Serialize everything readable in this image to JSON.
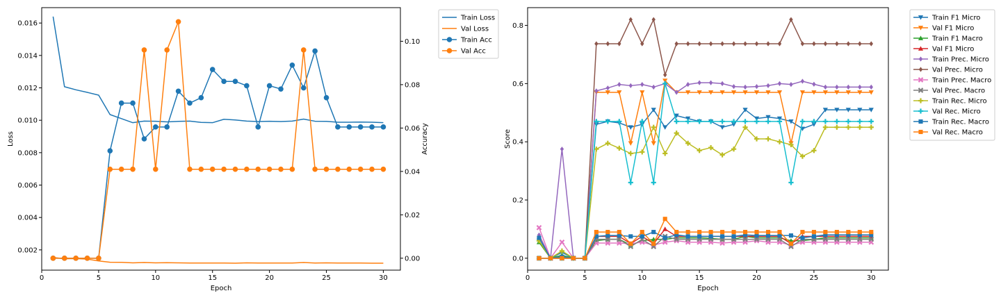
{
  "chart_data": [
    {
      "type": "line",
      "xlabel": "Epoch",
      "ylabel": "Loss",
      "y2label": "Accuracy",
      "xlim": [
        0,
        31.5
      ],
      "ylim": [
        0.00075,
        0.01695
      ],
      "y2lim": [
        -0.0055,
        0.1155
      ],
      "xticks": [
        0,
        5,
        10,
        15,
        20,
        25,
        30
      ],
      "yticks": [
        0.002,
        0.004,
        0.006,
        0.008,
        0.01,
        0.012,
        0.014,
        0.016
      ],
      "ytick_labels": [
        "0.002",
        "0.004",
        "0.006",
        "0.008",
        "0.010",
        "0.012",
        "0.014",
        "0.016"
      ],
      "y2ticks": [
        0.0,
        0.02,
        0.04,
        0.06,
        0.08,
        0.1
      ],
      "y2tick_labels": [
        "0.00",
        "0.02",
        "0.04",
        "0.06",
        "0.08",
        "0.10"
      ],
      "legend_position": "upper-right-outside",
      "x": [
        1,
        2,
        3,
        4,
        5,
        6,
        7,
        8,
        9,
        10,
        11,
        12,
        13,
        14,
        15,
        16,
        17,
        18,
        19,
        20,
        21,
        22,
        23,
        24,
        25,
        26,
        27,
        28,
        29,
        30
      ],
      "series": [
        {
          "name": "Train Loss",
          "axis": "left",
          "color": "#1f77b4",
          "marker": "none",
          "values": [
            0.0164,
            0.01207,
            0.01188,
            0.01172,
            0.01155,
            0.01035,
            0.0101,
            0.00985,
            0.00995,
            0.00994,
            0.0099,
            0.00993,
            0.00995,
            0.00987,
            0.00985,
            0.01006,
            0.01002,
            0.00995,
            0.00992,
            0.00994,
            0.00992,
            0.00995,
            0.01007,
            0.00994,
            0.00993,
            0.00988,
            0.00988,
            0.00989,
            0.00988,
            0.00985
          ]
        },
        {
          "name": "Val Loss",
          "axis": "left",
          "color": "#ff7f0e",
          "marker": "none",
          "values": [
            0.00153,
            0.00145,
            0.00146,
            0.00143,
            0.00132,
            0.00124,
            0.00123,
            0.0012,
            0.00122,
            0.0012,
            0.00121,
            0.0012,
            0.00119,
            0.00119,
            0.00119,
            0.00119,
            0.00118,
            0.0012,
            0.00119,
            0.00119,
            0.00119,
            0.00119,
            0.00122,
            0.00119,
            0.0012,
            0.00119,
            0.00119,
            0.00119,
            0.00118,
            0.00118
          ]
        },
        {
          "name": "Train Acc",
          "axis": "right",
          "color": "#1f77b4",
          "marker": "circle",
          "values": [
            0.0,
            0.0,
            0.0,
            0.0,
            0.0,
            0.0495,
            0.0715,
            0.0715,
            0.055,
            0.0605,
            0.0605,
            0.077,
            0.0715,
            0.074,
            0.087,
            0.0815,
            0.0815,
            0.0795,
            0.0605,
            0.0795,
            0.078,
            0.089,
            0.0785,
            0.0955,
            0.074,
            0.0605,
            0.0605,
            0.0605,
            0.0605,
            0.0605
          ]
        },
        {
          "name": "Val Acc",
          "axis": "right",
          "color": "#ff7f0e",
          "marker": "circle",
          "values": [
            0.0,
            0.0,
            0.0,
            0.0,
            0.0,
            0.041,
            0.041,
            0.041,
            0.096,
            0.041,
            0.096,
            0.109,
            0.041,
            0.041,
            0.041,
            0.041,
            0.041,
            0.041,
            0.041,
            0.041,
            0.041,
            0.041,
            0.096,
            0.041,
            0.041,
            0.041,
            0.041,
            0.041,
            0.041,
            0.041
          ]
        }
      ]
    },
    {
      "type": "line",
      "xlabel": "Epoch",
      "ylabel": "Score",
      "xlim": [
        0,
        31.5
      ],
      "ylim": [
        -0.041,
        0.861
      ],
      "xticks": [
        0,
        5,
        10,
        15,
        20,
        25,
        30
      ],
      "yticks": [
        0.0,
        0.2,
        0.4,
        0.6,
        0.8
      ],
      "ytick_labels": [
        "0.0",
        "0.2",
        "0.4",
        "0.6",
        "0.8"
      ],
      "legend_position": "upper-right-outside",
      "x": [
        1,
        2,
        3,
        4,
        5,
        6,
        7,
        8,
        9,
        10,
        11,
        12,
        13,
        14,
        15,
        16,
        17,
        18,
        19,
        20,
        21,
        22,
        23,
        24,
        25,
        26,
        27,
        28,
        29,
        30
      ],
      "series": [
        {
          "name": "Train F1 Micro",
          "color": "#1f77b4",
          "marker": "triangle-down",
          "values": [
            0.06,
            0.0,
            0.02,
            0.0,
            0.0,
            0.46,
            0.47,
            0.465,
            0.45,
            0.46,
            0.51,
            0.45,
            0.49,
            0.48,
            0.47,
            0.47,
            0.45,
            0.46,
            0.51,
            0.48,
            0.485,
            0.48,
            0.47,
            0.445,
            0.46,
            0.51,
            0.51,
            0.51,
            0.51,
            0.51
          ]
        },
        {
          "name": "Val F1 Micro",
          "color": "#ff7f0e",
          "marker": "triangle-down",
          "values": [
            0.0,
            0.0,
            0.0,
            0.0,
            0.0,
            0.57,
            0.57,
            0.57,
            0.395,
            0.57,
            0.395,
            0.61,
            0.57,
            0.57,
            0.57,
            0.57,
            0.57,
            0.57,
            0.57,
            0.57,
            0.57,
            0.57,
            0.395,
            0.57,
            0.57,
            0.57,
            0.57,
            0.57,
            0.57,
            0.57
          ]
        },
        {
          "name": "Train F1 Macro",
          "color": "#2ca02c",
          "marker": "triangle-up",
          "values": [
            0.055,
            0.0,
            0.01,
            0.0,
            0.0,
            0.06,
            0.065,
            0.065,
            0.045,
            0.06,
            0.065,
            0.065,
            0.07,
            0.07,
            0.07,
            0.068,
            0.065,
            0.065,
            0.075,
            0.07,
            0.07,
            0.07,
            0.06,
            0.06,
            0.065,
            0.07,
            0.07,
            0.07,
            0.07,
            0.07
          ]
        },
        {
          "name": "Val F1 Micro",
          "color": "#d62728",
          "marker": "triangle-up",
          "values": [
            0.0,
            0.0,
            0.0,
            0.0,
            0.0,
            0.075,
            0.075,
            0.075,
            0.05,
            0.075,
            0.05,
            0.1,
            0.075,
            0.075,
            0.075,
            0.075,
            0.075,
            0.075,
            0.075,
            0.075,
            0.075,
            0.075,
            0.05,
            0.075,
            0.075,
            0.075,
            0.075,
            0.075,
            0.075,
            0.075
          ]
        },
        {
          "name": "Train Prec. Micro",
          "color": "#9467bd",
          "marker": "diamond",
          "values": [
            0.08,
            0.0,
            0.375,
            0.0,
            0.0,
            0.575,
            0.585,
            0.597,
            0.593,
            0.597,
            0.588,
            0.6,
            0.57,
            0.597,
            0.603,
            0.603,
            0.6,
            0.59,
            0.588,
            0.59,
            0.593,
            0.6,
            0.597,
            0.608,
            0.598,
            0.588,
            0.588,
            0.588,
            0.588,
            0.588
          ]
        },
        {
          "name": "Val Prec. Micro",
          "color": "#8c564b",
          "marker": "diamond",
          "values": [
            0.0,
            0.0,
            0.0,
            0.0,
            0.0,
            0.737,
            0.737,
            0.737,
            0.82,
            0.737,
            0.82,
            0.63,
            0.737,
            0.737,
            0.737,
            0.737,
            0.737,
            0.737,
            0.737,
            0.737,
            0.737,
            0.737,
            0.82,
            0.737,
            0.737,
            0.737,
            0.737,
            0.737,
            0.737,
            0.737
          ]
        },
        {
          "name": "Train Prec. Macro",
          "color": "#e377c2",
          "marker": "x",
          "values": [
            0.105,
            0.0,
            0.055,
            0.0,
            0.0,
            0.052,
            0.052,
            0.052,
            0.05,
            0.055,
            0.045,
            0.055,
            0.06,
            0.055,
            0.055,
            0.055,
            0.052,
            0.055,
            0.055,
            0.06,
            0.055,
            0.055,
            0.045,
            0.055,
            0.055,
            0.055,
            0.055,
            0.055,
            0.055,
            0.055
          ]
        },
        {
          "name": "Val Prec. Macro",
          "color": "#7f7f7f",
          "marker": "x",
          "values": [
            0.0,
            0.0,
            0.0,
            0.0,
            0.0,
            0.065,
            0.065,
            0.065,
            0.04,
            0.065,
            0.04,
            0.075,
            0.065,
            0.065,
            0.065,
            0.065,
            0.065,
            0.065,
            0.065,
            0.065,
            0.065,
            0.065,
            0.04,
            0.065,
            0.065,
            0.065,
            0.065,
            0.065,
            0.065,
            0.065
          ]
        },
        {
          "name": "Train Rec. Micro",
          "color": "#bcbd22",
          "marker": "plus",
          "values": [
            0.06,
            0.0,
            0.025,
            0.0,
            0.0,
            0.375,
            0.395,
            0.378,
            0.36,
            0.365,
            0.45,
            0.36,
            0.43,
            0.395,
            0.37,
            0.38,
            0.355,
            0.375,
            0.45,
            0.41,
            0.41,
            0.4,
            0.39,
            0.35,
            0.37,
            0.45,
            0.45,
            0.45,
            0.45,
            0.45
          ]
        },
        {
          "name": "Val Rec. Micro",
          "color": "#17becf",
          "marker": "plus",
          "values": [
            0.0,
            0.0,
            0.0,
            0.0,
            0.0,
            0.47,
            0.47,
            0.47,
            0.26,
            0.47,
            0.26,
            0.6,
            0.47,
            0.47,
            0.47,
            0.47,
            0.47,
            0.47,
            0.47,
            0.47,
            0.47,
            0.47,
            0.26,
            0.47,
            0.47,
            0.47,
            0.47,
            0.47,
            0.47,
            0.47
          ]
        },
        {
          "name": "Train Rec. Macro",
          "color": "#1f77b4",
          "marker": "square",
          "values": [
            0.07,
            0.0,
            0.005,
            0.0,
            0.0,
            0.075,
            0.078,
            0.078,
            0.075,
            0.075,
            0.09,
            0.07,
            0.08,
            0.075,
            0.075,
            0.075,
            0.075,
            0.075,
            0.08,
            0.078,
            0.078,
            0.078,
            0.078,
            0.07,
            0.075,
            0.08,
            0.08,
            0.08,
            0.08,
            0.08
          ]
        },
        {
          "name": "Val Rec. Macro",
          "color": "#ff7f0e",
          "marker": "square",
          "values": [
            0.0,
            0.0,
            0.0,
            0.0,
            0.0,
            0.09,
            0.09,
            0.09,
            0.05,
            0.09,
            0.05,
            0.135,
            0.09,
            0.09,
            0.09,
            0.09,
            0.09,
            0.09,
            0.09,
            0.09,
            0.09,
            0.09,
            0.05,
            0.09,
            0.09,
            0.09,
            0.09,
            0.09,
            0.09,
            0.09
          ]
        }
      ]
    }
  ]
}
